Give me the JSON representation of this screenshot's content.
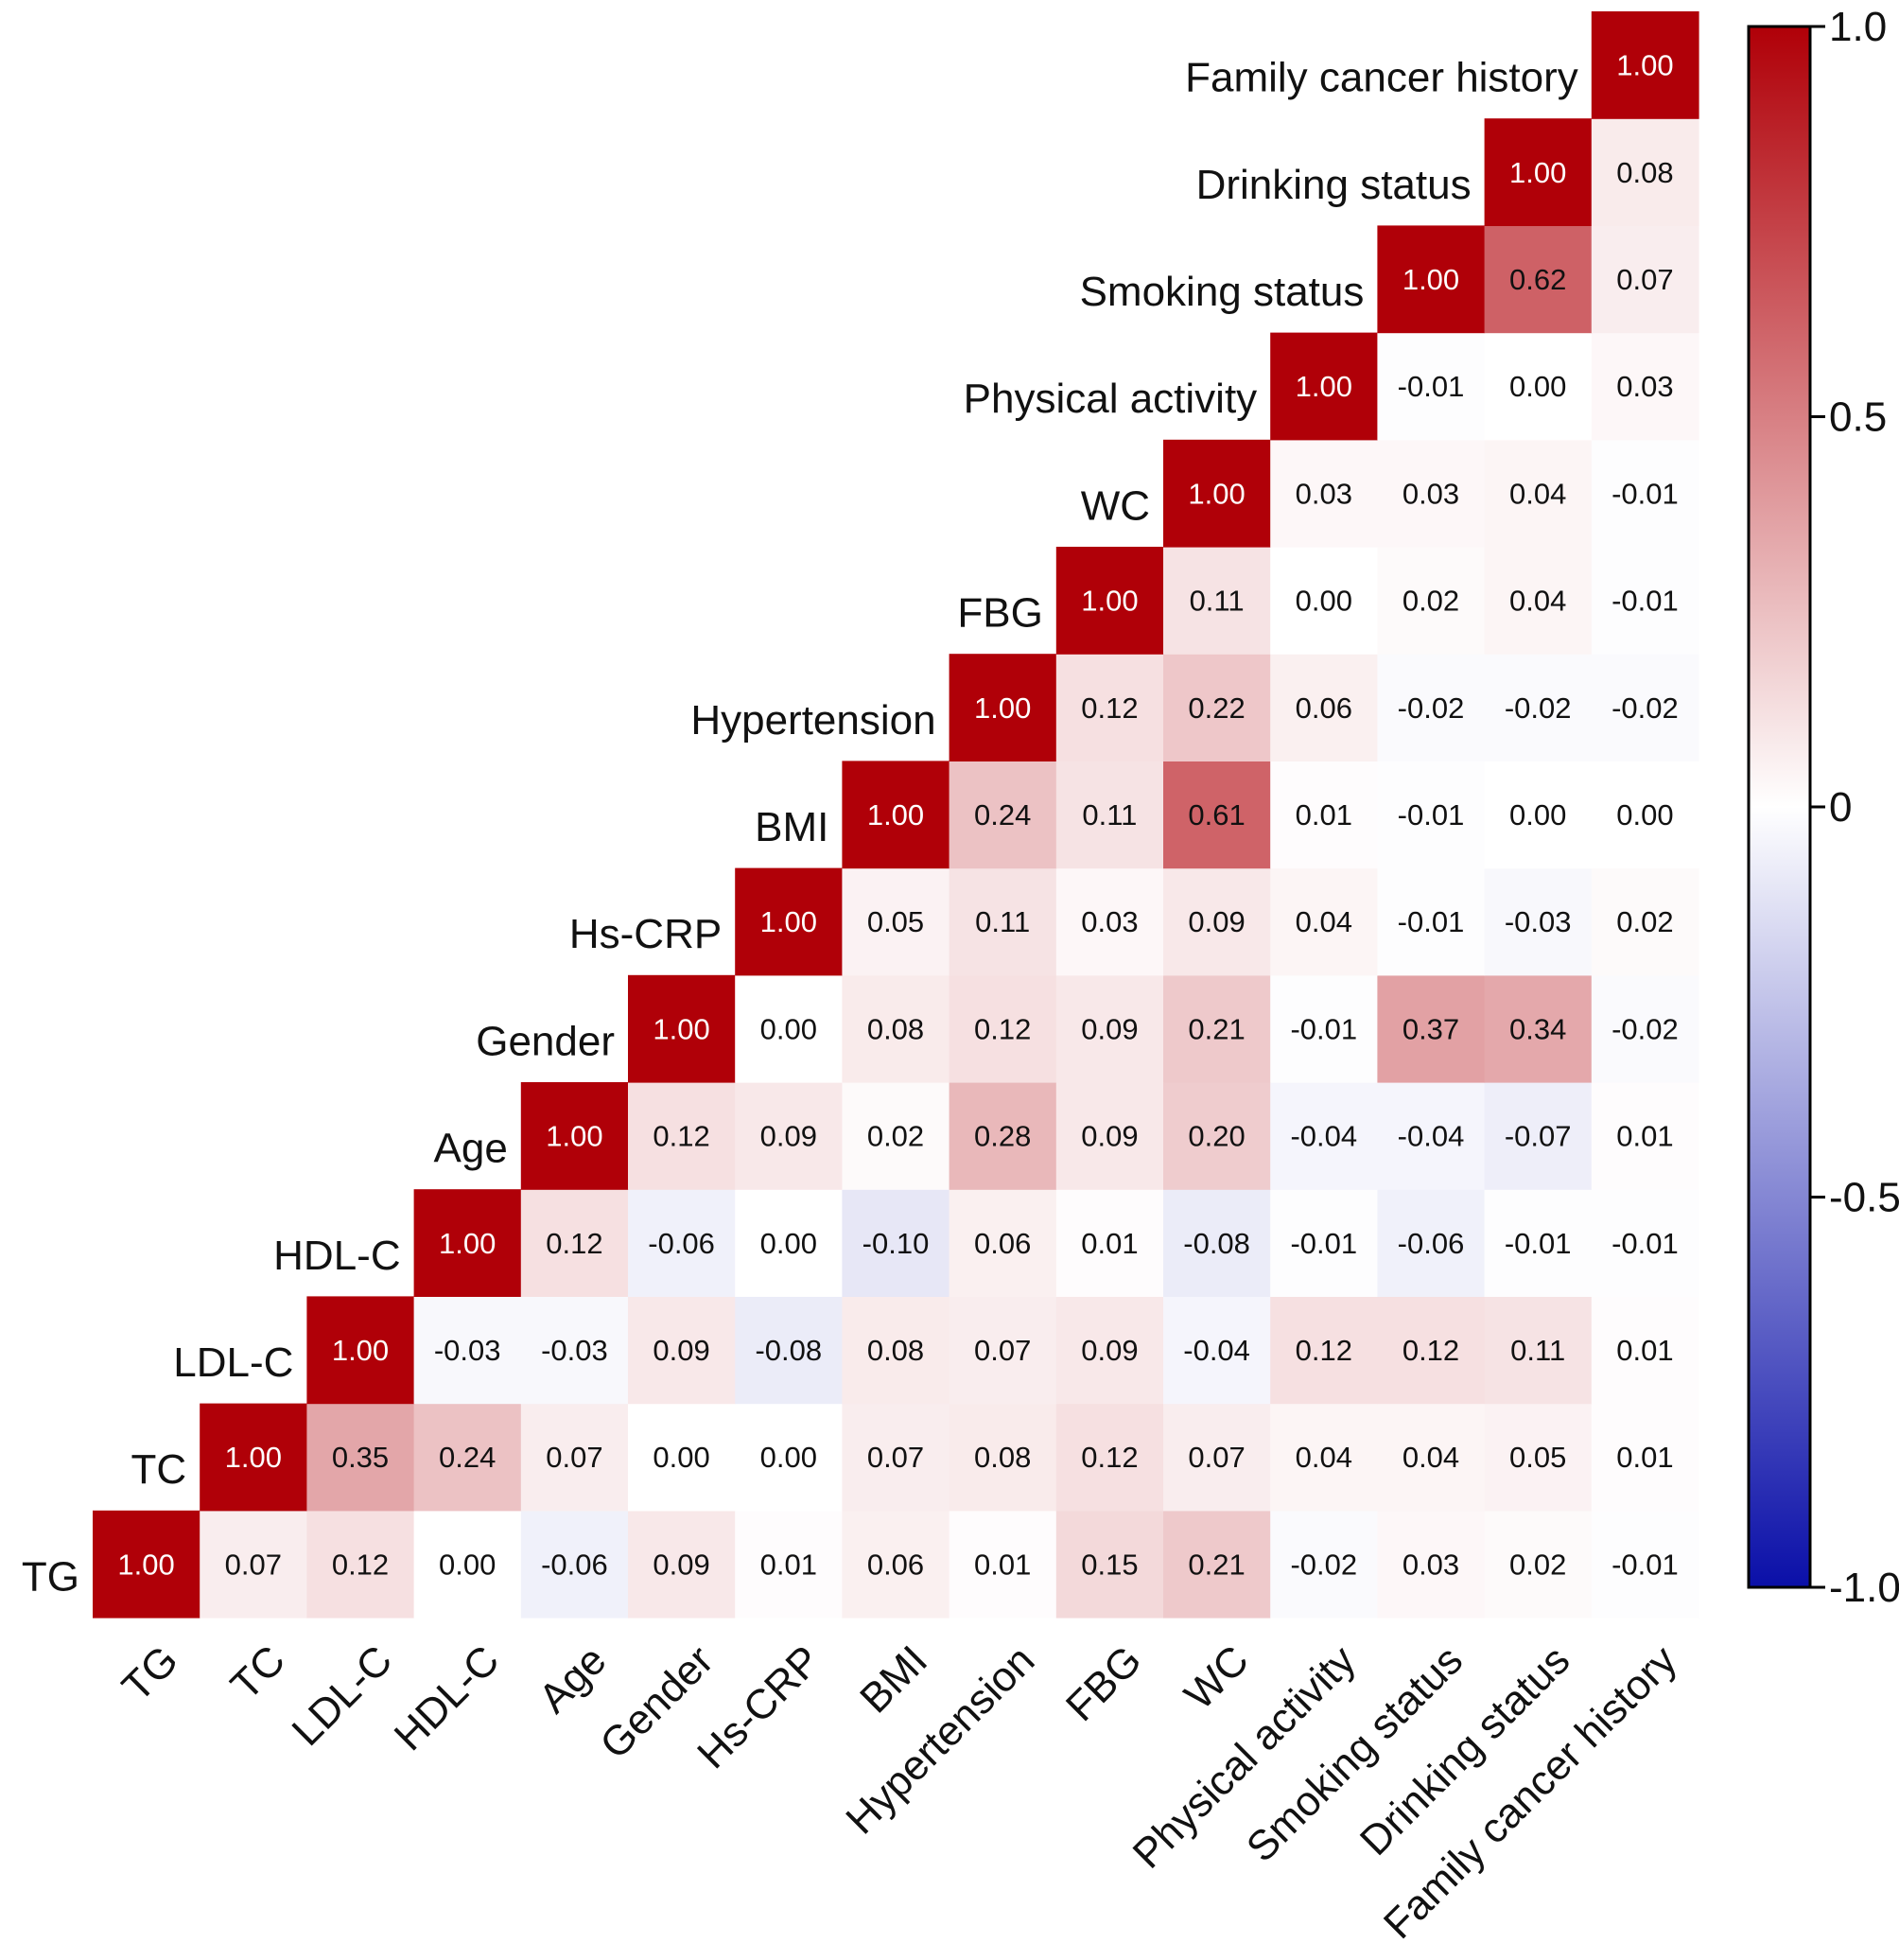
{
  "chart_data": {
    "type": "heatmap",
    "title": "",
    "variables": [
      "TG",
      "TC",
      "LDL-C",
      "HDL-C",
      "Age",
      "Gender",
      "Hs-CRP",
      "BMI",
      "Hypertension",
      "FBG",
      "WC",
      "Physical activity",
      "Smoking status",
      "Drinking status",
      "Family cancer history"
    ],
    "matrix": [
      [
        "1.00",
        "0.07",
        "0.12",
        "0.00",
        "-0.06",
        "0.09",
        "0.01",
        "0.06",
        "0.01",
        "0.15",
        "0.21",
        "-0.02",
        "0.03",
        "0.02",
        "-0.01"
      ],
      [
        null,
        "1.00",
        "0.35",
        "0.24",
        "0.07",
        "0.00",
        "0.00",
        "0.07",
        "0.08",
        "0.12",
        "0.07",
        "0.04",
        "0.04",
        "0.05",
        "0.01"
      ],
      [
        null,
        null,
        "1.00",
        "-0.03",
        "-0.03",
        "0.09",
        "-0.08",
        "0.08",
        "0.07",
        "0.09",
        "-0.04",
        "0.12",
        "0.12",
        "0.11",
        "0.01"
      ],
      [
        null,
        null,
        null,
        "1.00",
        "0.12",
        "-0.06",
        "0.00",
        "-0.10",
        "0.06",
        "0.01",
        "-0.08",
        "-0.01",
        "-0.06",
        "-0.01",
        "-0.01"
      ],
      [
        null,
        null,
        null,
        null,
        "1.00",
        "0.12",
        "0.09",
        "0.02",
        "0.28",
        "0.09",
        "0.20",
        "-0.04",
        "-0.04",
        "-0.07",
        "0.01"
      ],
      [
        null,
        null,
        null,
        null,
        null,
        "1.00",
        "0.00",
        "0.08",
        "0.12",
        "0.09",
        "0.21",
        "-0.01",
        "0.37",
        "0.34",
        "-0.02"
      ],
      [
        null,
        null,
        null,
        null,
        null,
        null,
        "1.00",
        "0.05",
        "0.11",
        "0.03",
        "0.09",
        "0.04",
        "-0.01",
        "-0.03",
        "0.02"
      ],
      [
        null,
        null,
        null,
        null,
        null,
        null,
        null,
        "1.00",
        "0.24",
        "0.11",
        "0.61",
        "0.01",
        "-0.01",
        "0.00",
        "0.00"
      ],
      [
        null,
        null,
        null,
        null,
        null,
        null,
        null,
        null,
        "1.00",
        "0.12",
        "0.22",
        "0.06",
        "-0.02",
        "-0.02",
        "-0.02"
      ],
      [
        null,
        null,
        null,
        null,
        null,
        null,
        null,
        null,
        null,
        "1.00",
        "0.11",
        "0.00",
        "0.02",
        "0.04",
        "-0.01"
      ],
      [
        null,
        null,
        null,
        null,
        null,
        null,
        null,
        null,
        null,
        null,
        "1.00",
        "0.03",
        "0.03",
        "0.04",
        "-0.01"
      ],
      [
        null,
        null,
        null,
        null,
        null,
        null,
        null,
        null,
        null,
        null,
        null,
        "1.00",
        "-0.01",
        "0.00",
        "0.03"
      ],
      [
        null,
        null,
        null,
        null,
        null,
        null,
        null,
        null,
        null,
        null,
        null,
        null,
        "1.00",
        "0.62",
        "0.07"
      ],
      [
        null,
        null,
        null,
        null,
        null,
        null,
        null,
        null,
        null,
        null,
        null,
        null,
        null,
        "1.00",
        "0.08"
      ],
      [
        null,
        null,
        null,
        null,
        null,
        null,
        null,
        null,
        null,
        null,
        null,
        null,
        null,
        null,
        "1.00"
      ]
    ],
    "colorbar": {
      "range": [
        -1.0,
        1.0
      ],
      "ticks": [
        1.0,
        0.5,
        0,
        -0.5,
        -1.0
      ],
      "tick_labels": [
        "1.0",
        "0.5",
        "0",
        "-0.5",
        "-1.0"
      ],
      "colors": {
        "negative": "#0a0fa8",
        "zero": "#ffffff",
        "positive": "#b00008"
      }
    }
  }
}
